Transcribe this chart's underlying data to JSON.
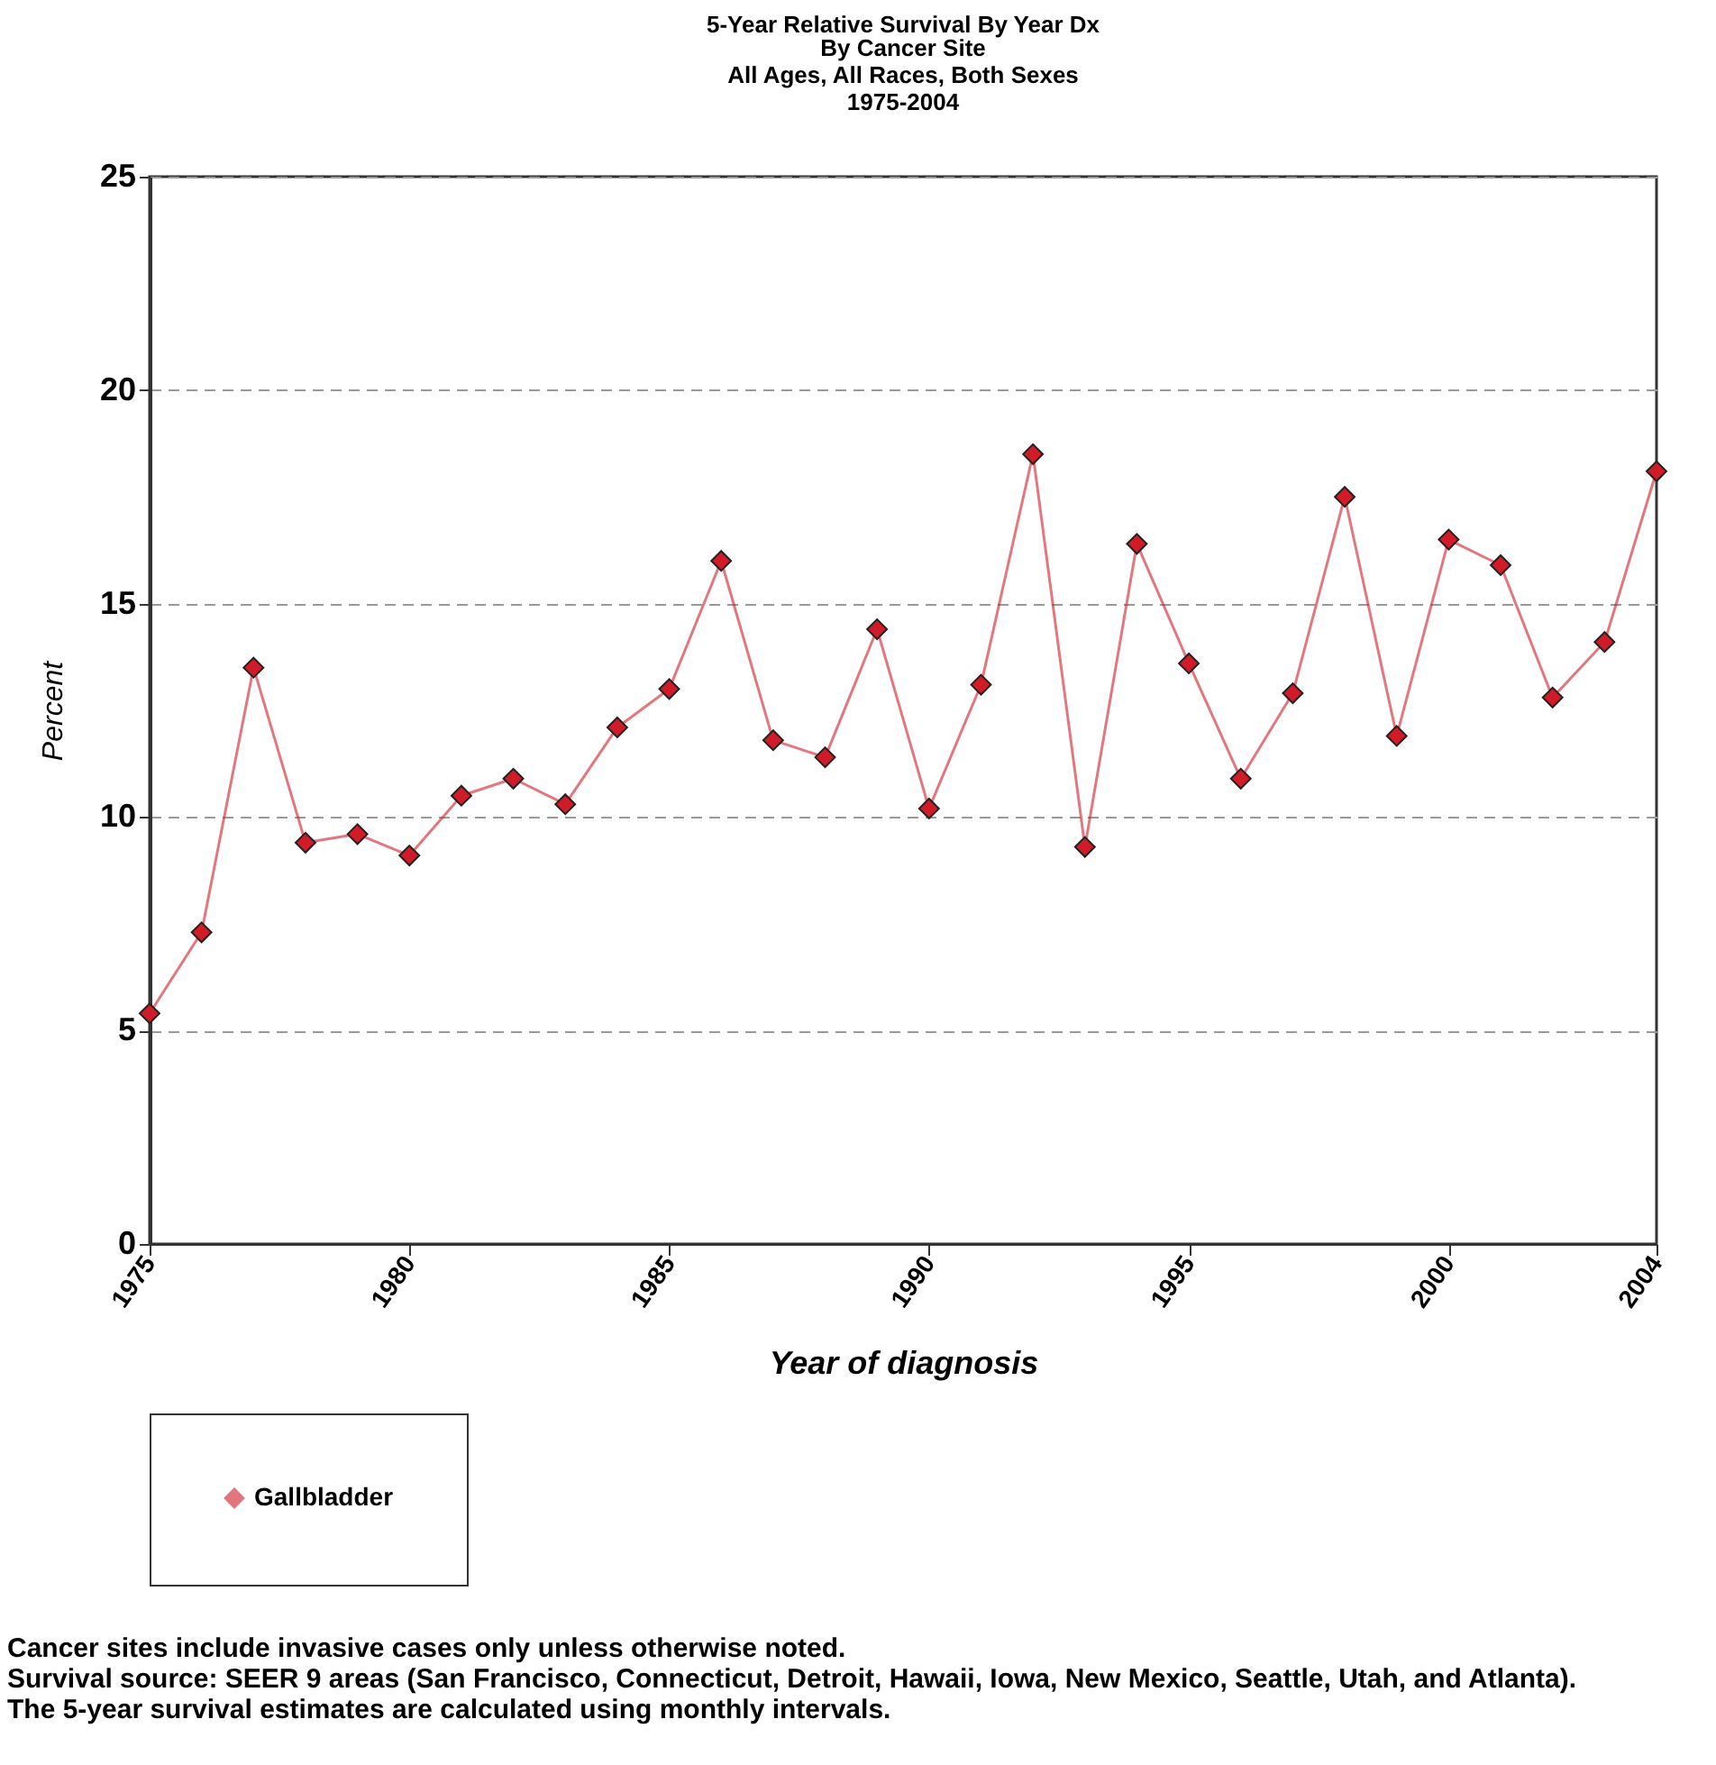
{
  "chart_data": {
    "type": "line",
    "title": "5-Year Relative Survival By Year Dx",
    "subtitle": "By Cancer Site\nAll Ages, All Races, Both Sexes\n1975-2004",
    "xlabel": "Year of diagnosis",
    "ylabel": "Percent",
    "x": [
      1975,
      1976,
      1977,
      1978,
      1979,
      1980,
      1981,
      1982,
      1983,
      1984,
      1985,
      1986,
      1987,
      1988,
      1989,
      1990,
      1991,
      1992,
      1993,
      1994,
      1995,
      1996,
      1997,
      1998,
      1999,
      2000,
      2001,
      2002,
      2003,
      2004
    ],
    "series": [
      {
        "name": "Gallbladder",
        "color": "#d01c28",
        "values": [
          5.4,
          7.3,
          13.5,
          9.4,
          9.6,
          9.1,
          10.5,
          10.9,
          10.3,
          12.1,
          13.0,
          16.0,
          11.8,
          11.4,
          14.4,
          10.2,
          13.1,
          18.5,
          9.3,
          16.4,
          13.6,
          10.9,
          12.9,
          17.5,
          11.9,
          16.5,
          15.9,
          12.8,
          14.1,
          18.1
        ]
      }
    ],
    "xlim": [
      1975,
      2004
    ],
    "xticks": [
      1975,
      1980,
      1985,
      1990,
      1995,
      2000,
      2004
    ],
    "ylim": [
      0,
      25
    ],
    "yticks": [
      0,
      5,
      10,
      15,
      20,
      25
    ],
    "grid": "y",
    "legend": "bottom",
    "marker": "diamond",
    "line_style": "solid",
    "annotations": [
      "Cancer sites include invasive cases only unless otherwise noted.",
      "Survival source: SEER 9 areas (San Francisco, Connecticut, Detroit, Hawaii, Iowa, New Mexico, Seattle, Utah, and Atlanta).",
      "The 5-year survival estimates are calculated using monthly intervals."
    ]
  }
}
